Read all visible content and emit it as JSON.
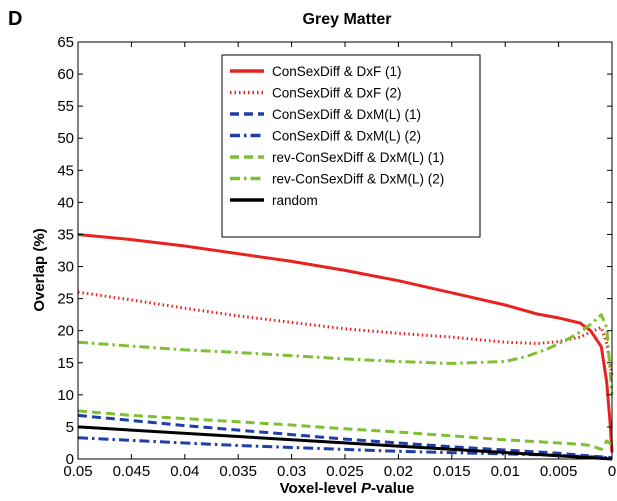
{
  "panel_label": "D",
  "chart_data": {
    "type": "line",
    "title": "Grey Matter",
    "xlabel_prefix": "Voxel-level ",
    "xlabel_italic": "P",
    "xlabel_suffix": "-value",
    "ylabel": "Overlap (%)",
    "xlim": [
      0.05,
      0
    ],
    "ylim": [
      0,
      65
    ],
    "x_ticks": [
      0.05,
      0.045,
      0.04,
      0.035,
      0.03,
      0.025,
      0.02,
      0.015,
      0.01,
      0.005,
      0
    ],
    "x_tick_labels": [
      "0.05",
      "0.045",
      "0.04",
      "0.035",
      "0.03",
      "0.025",
      "0.02",
      "0.015",
      "0.01",
      "0.005",
      "0"
    ],
    "y_ticks": [
      0,
      5,
      10,
      15,
      20,
      25,
      30,
      35,
      40,
      45,
      50,
      55,
      60,
      65
    ],
    "y_tick_labels": [
      "0",
      "5",
      "10",
      "15",
      "20",
      "25",
      "30",
      "35",
      "40",
      "45",
      "50",
      "55",
      "60",
      "65"
    ],
    "grid": false,
    "legend_position": "top-center",
    "series": [
      {
        "name": "ConSexDiff & DxF (1)",
        "color": "#e8221f",
        "style": "solid",
        "x": [
          0.05,
          0.045,
          0.04,
          0.035,
          0.03,
          0.025,
          0.02,
          0.015,
          0.01,
          0.007,
          0.005,
          0.003,
          0.002,
          0.001,
          0.0005,
          0.0002,
          0
        ],
        "y": [
          35,
          34.2,
          33.2,
          32,
          30.8,
          29.4,
          27.8,
          25.9,
          24,
          22.6,
          22,
          21.2,
          20,
          17.5,
          12,
          6,
          1
        ]
      },
      {
        "name": "ConSexDiff & DxF (2)",
        "color": "#e8221f",
        "style": "dotted",
        "x": [
          0.05,
          0.045,
          0.04,
          0.035,
          0.03,
          0.025,
          0.02,
          0.015,
          0.01,
          0.007,
          0.005,
          0.003,
          0.002,
          0.001,
          0.0005,
          0
        ],
        "y": [
          26,
          24.8,
          23.5,
          22.3,
          21.3,
          20.3,
          19.6,
          19,
          18.2,
          18,
          18.3,
          19,
          19.8,
          20.5,
          18,
          13
        ]
      },
      {
        "name": "ConSexDiff & DxM(L) (1)",
        "color": "#1f3fa8",
        "style": "dashed",
        "x": [
          0.05,
          0.045,
          0.04,
          0.035,
          0.03,
          0.025,
          0.02,
          0.015,
          0.01,
          0.005,
          0.003,
          0
        ],
        "y": [
          6.8,
          6,
          5.2,
          4.5,
          3.8,
          3.1,
          2.5,
          1.9,
          1.4,
          0.9,
          0.6,
          0.2
        ]
      },
      {
        "name": "ConSexDiff & DxM(L) (2)",
        "color": "#1f3fa8",
        "style": "dashdot",
        "x": [
          0.05,
          0.045,
          0.04,
          0.035,
          0.03,
          0.025,
          0.02,
          0.015,
          0.01,
          0.005,
          0.003,
          0
        ],
        "y": [
          3.3,
          2.9,
          2.5,
          2.1,
          1.8,
          1.5,
          1.2,
          1,
          0.8,
          0.6,
          0.4,
          0.2
        ]
      },
      {
        "name": "rev-ConSexDiff & DxM(L) (1)",
        "color": "#7ec031",
        "style": "dashed",
        "x": [
          0.05,
          0.045,
          0.04,
          0.035,
          0.03,
          0.025,
          0.02,
          0.015,
          0.01,
          0.007,
          0.005,
          0.003,
          0.002,
          0.001,
          0.0005,
          0
        ],
        "y": [
          7.5,
          6.8,
          6.3,
          5.8,
          5.3,
          4.7,
          4.2,
          3.6,
          3,
          2.7,
          2.5,
          2.3,
          2.1,
          1.5,
          2.8,
          2.2
        ]
      },
      {
        "name": "rev-ConSexDiff & DxM(L) (2)",
        "color": "#7ec031",
        "style": "dashdot",
        "x": [
          0.05,
          0.045,
          0.04,
          0.035,
          0.03,
          0.025,
          0.02,
          0.015,
          0.01,
          0.008,
          0.006,
          0.004,
          0.003,
          0.002,
          0.001,
          0.0005,
          0
        ],
        "y": [
          18.2,
          17.6,
          17,
          16.6,
          16.1,
          15.6,
          15.2,
          14.9,
          15.2,
          16,
          17.2,
          18.8,
          19.8,
          21,
          22.5,
          20.5,
          10
        ]
      },
      {
        "name": "random",
        "color": "#000000",
        "style": "solid",
        "x": [
          0.05,
          0
        ],
        "y": [
          5,
          0
        ]
      }
    ]
  }
}
